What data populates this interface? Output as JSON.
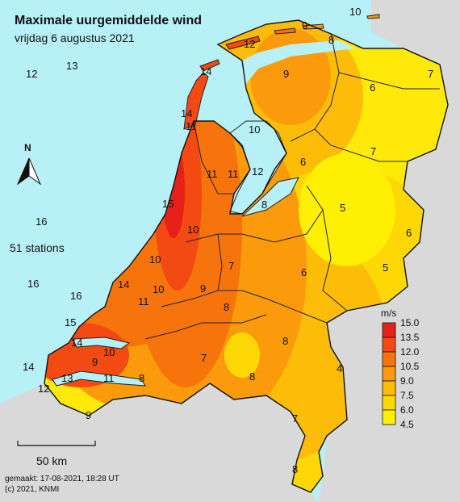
{
  "title": "Maximale uurgemiddelde wind",
  "subtitle": "vrijdag 6 augustus 2021",
  "station_count": "51 stations",
  "north_label": "N",
  "scale_label": "50 km",
  "made_label": "gemaakt: 17-08-2021, 18:28 UT",
  "copyright": "(c) 2021, KNMI",
  "colors": {
    "sea": "#b8f0f8",
    "land_outside": "#d9d9d9",
    "border": "#222222"
  },
  "legend": {
    "unit": "m/s",
    "ticks": [
      "15.0",
      "13.5",
      "12.0",
      "10.5",
      "9.0",
      "7.5",
      "6.0",
      "4.5"
    ],
    "colors": [
      "#e8201a",
      "#f24a12",
      "#f7740d",
      "#fb9a0a",
      "#fdbc08",
      "#fed806",
      "#ffef03"
    ]
  },
  "station_values": [
    "10",
    "9",
    "8",
    "12",
    "14",
    "9",
    "6",
    "7",
    "12",
    "13",
    "14",
    "11",
    "10",
    "6",
    "7",
    "11",
    "11",
    "12",
    "15",
    "8",
    "5",
    "16",
    "10",
    "6",
    "10",
    "7",
    "6",
    "5",
    "16",
    "14",
    "9",
    "16",
    "10",
    "11",
    "8",
    "15",
    "14",
    "8",
    "14",
    "9",
    "10",
    "7",
    "4",
    "13",
    "11",
    "8",
    "12",
    "8",
    "9",
    "7",
    "8"
  ]
}
